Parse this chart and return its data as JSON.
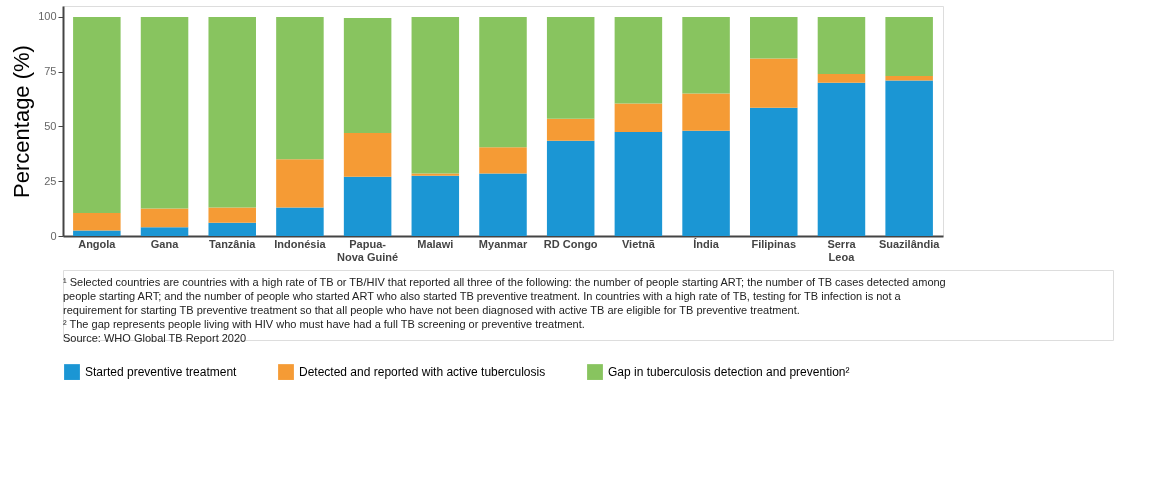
{
  "chart_data": {
    "type": "bar",
    "stacked": true,
    "ylabel": "Percentage (%)",
    "categories": [
      "Angola",
      "Gana",
      "Tanzânia",
      "Indonésia",
      "Papua-Nova Guiné",
      "Malawi",
      "Myanmar",
      "RD Congo",
      "Vietnã",
      "Índia",
      "Filipinas",
      "Serra Leoa",
      "Suazilândia"
    ],
    "series": [
      {
        "name": "Started preventive treatment",
        "color": "#1b96d4",
        "values": [
          2.5,
          4,
          6,
          13,
          27,
          27.5,
          28.5,
          43.5,
          47.5,
          48,
          58.5,
          70,
          71
        ]
      },
      {
        "name": "Detected and reported with active tuberculosis",
        "color": "#f59b35",
        "values": [
          8,
          8.5,
          7,
          22,
          20,
          1,
          12,
          10,
          13,
          17,
          22.5,
          4,
          2
        ]
      },
      {
        "name": "Gap in tuberculosis detection and prevention²",
        "color": "#88c45f",
        "values": [
          89.5,
          87.5,
          87,
          65,
          52.5,
          71.5,
          59.5,
          46.5,
          39.5,
          35,
          19,
          26,
          27
        ]
      }
    ],
    "ylim": [
      0,
      105
    ],
    "yticks": [
      0,
      25,
      50,
      75,
      100
    ],
    "grid": false,
    "legend": "bottom",
    "annotations": [
      "¹ Selected countries are countries with a high rate of TB or TB/HIV that reported all three of the following: the number of people starting ART; the number of TB cases detected among people starting ART; and the number of people who started ART who also started TB preventive treatment. In countries with a high rate of TB, testing for TB infection is not a requirement for starting TB preventive treatment so that all people who have not been diagnosed with active TB are eligible for TB preventive treatment.",
      "² The gap represents people living with HIV who must have had a full TB screening or preventive treatment.",
      "Source: WHO Global TB Report 2020"
    ]
  }
}
